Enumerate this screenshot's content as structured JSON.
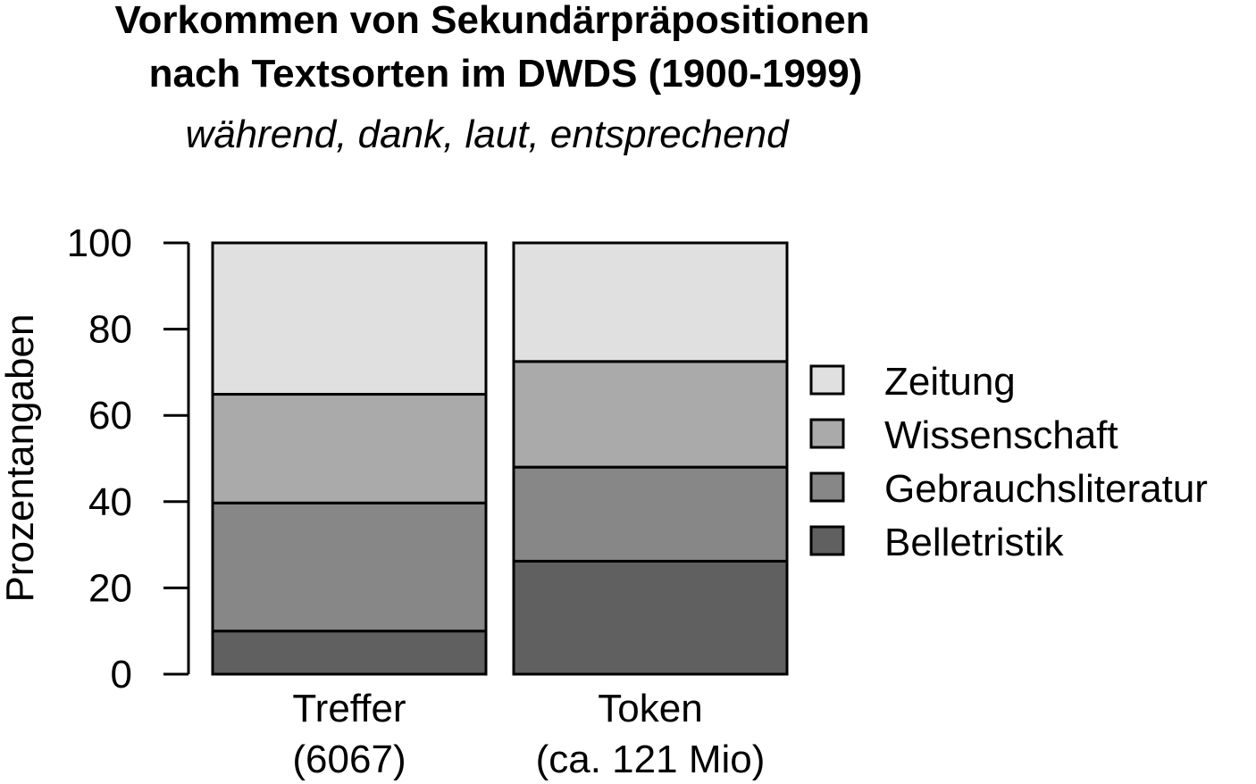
{
  "chart_data": {
    "type": "bar",
    "stacked": true,
    "title": [
      "Vorkommen von Sekundärpräpositionen",
      "nach Textsorten im DWDS (1900-1999)"
    ],
    "subtitle": "während, dank, laut, entsprechend",
    "xlabel": "",
    "ylabel": "Prozentangaben",
    "ylim": [
      0,
      100
    ],
    "yticks": [
      0,
      20,
      40,
      60,
      80,
      100
    ],
    "categories": [
      [
        "Treffer",
        "(6067)"
      ],
      [
        "Token",
        "(ca. 121 Mio)"
      ]
    ],
    "series": [
      {
        "name": "Belletristik",
        "color": "#606060",
        "values": [
          10,
          26.2
        ]
      },
      {
        "name": "Gebrauchsliteratur",
        "color": "#878787",
        "values": [
          29.7,
          21.8
        ]
      },
      {
        "name": "Wissenschaft",
        "color": "#aaaaaa",
        "values": [
          25.2,
          24.5
        ]
      },
      {
        "name": "Zeitung",
        "color": "#e0e0e0",
        "values": [
          35.1,
          27.5
        ]
      }
    ],
    "legend": {
      "position": "right",
      "order": [
        "Zeitung",
        "Wissenschaft",
        "Gebrauchsliteratur",
        "Belletristik"
      ]
    },
    "grid": false
  }
}
